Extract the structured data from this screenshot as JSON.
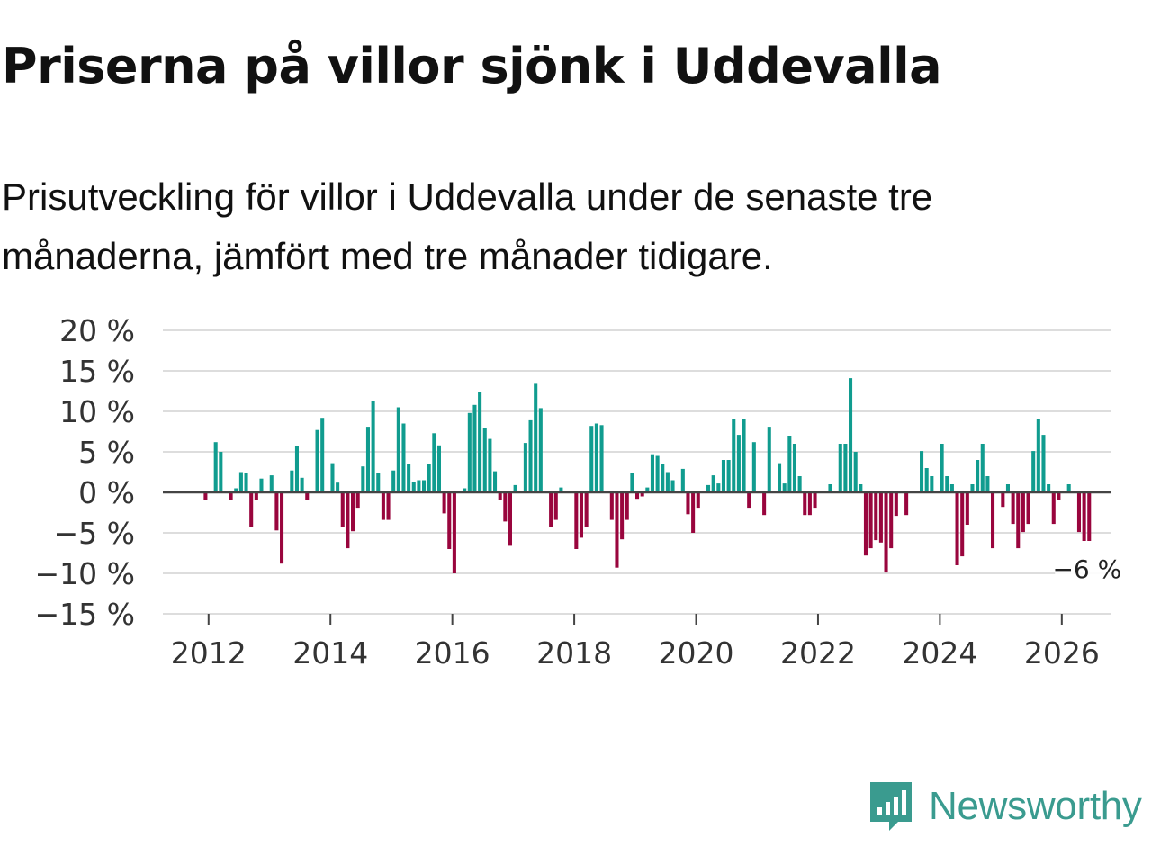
{
  "title": "Priserna på villor sjönk i Uddevalla",
  "subtitle": "Prisutveckling för villor i Uddevalla under de senaste tre månaderna, jämfört med tre månader tidigare.",
  "brand": {
    "name": "Newsworthy",
    "color": "#3a9b8f",
    "icon": "newsworthy-logo-icon"
  },
  "colors": {
    "positive": "#109c8f",
    "negative": "#99053d",
    "grid": "#dddddd",
    "zero_line": "#444444"
  },
  "chart_data": {
    "type": "bar",
    "title": "Priserna på villor sjönk i Uddevalla",
    "xlabel": "",
    "ylabel": "",
    "ylim": [
      -15,
      20
    ],
    "yticks": [
      20,
      15,
      10,
      5,
      0,
      -5,
      -10,
      -15
    ],
    "ytick_labels": [
      "20 %",
      "15 %",
      "10 %",
      "5 %",
      "0 %",
      "−5 %",
      "−10 %",
      "−15 %"
    ],
    "xticks": [
      2012,
      2014,
      2016,
      2018,
      2020,
      2022,
      2024,
      2026
    ],
    "xtick_labels": [
      "2012",
      "2014",
      "2016",
      "2018",
      "2020",
      "2022",
      "2024",
      "2026"
    ],
    "xlim": [
      2011.25,
      2026.8
    ],
    "grid": true,
    "start": 2011.95,
    "step": 0.08333,
    "values": [
      -1,
      0,
      6.2,
      5,
      0,
      -1,
      0.5,
      2.5,
      2.4,
      -4.3,
      -1,
      1.7,
      0,
      2.1,
      -4.7,
      -8.8,
      0,
      2.7,
      5.7,
      1.8,
      -1,
      0,
      7.7,
      9.2,
      0,
      3.6,
      1.2,
      -4.3,
      -6.9,
      -4.8,
      -1.9,
      3.2,
      8.1,
      11.3,
      2.4,
      -3.4,
      -3.4,
      2.7,
      10.5,
      8.5,
      3.5,
      1.3,
      1.5,
      1.5,
      3.5,
      7.3,
      5.8,
      -2.6,
      -7,
      -10,
      0,
      0.5,
      9.8,
      10.8,
      12.4,
      8,
      6.6,
      2.6,
      -0.9,
      -3.6,
      -6.6,
      0.9,
      0,
      6.1,
      8.9,
      13.4,
      10.4,
      0,
      -4.3,
      -3.4,
      0.6,
      0,
      0,
      -7,
      -5.6,
      -4.3,
      8.2,
      8.5,
      8.3,
      0,
      -3.4,
      -9.3,
      -5.8,
      -3.4,
      2.4,
      -0.8,
      -0.5,
      0.6,
      4.7,
      4.5,
      3.5,
      2.5,
      1.5,
      0,
      2.9,
      -2.7,
      -5,
      -1.9,
      0,
      0.9,
      2.1,
      1.1,
      4,
      4,
      9.1,
      7.1,
      9.1,
      -1.9,
      6.2,
      0,
      -2.8,
      8.1,
      0,
      3.6,
      1.1,
      7,
      6,
      2,
      -2.8,
      -2.8,
      -1.9,
      0,
      0,
      1,
      0,
      6,
      6,
      14.1,
      5,
      1,
      -7.8,
      -6.9,
      -5.9,
      -6.2,
      -9.9,
      -6.9,
      -2.9,
      0,
      -2.8,
      0,
      0,
      5.1,
      3,
      2,
      0,
      6,
      2,
      1,
      -9,
      -7.9,
      -4,
      1,
      4,
      6,
      2,
      -6.9,
      0,
      -1.8,
      1,
      -3.9,
      -6.9,
      -4.9,
      -3.9,
      5.1,
      9.1,
      7.1,
      1,
      -3.9,
      -1,
      0,
      1,
      0,
      -4.9,
      -6,
      -6
    ],
    "annotation": {
      "label": "−6 %",
      "value": -6
    }
  }
}
